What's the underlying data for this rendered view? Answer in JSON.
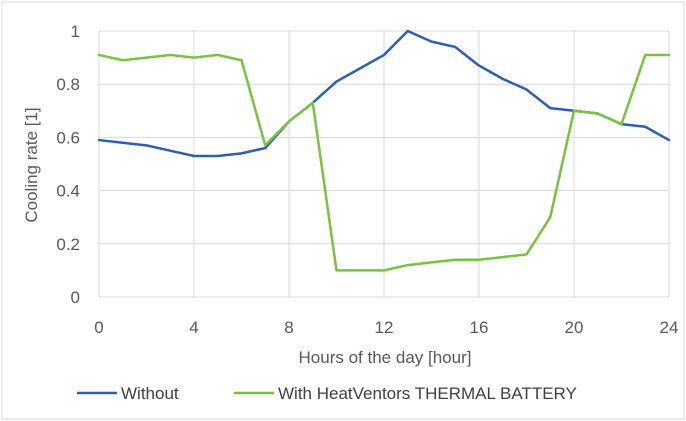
{
  "chart_data": {
    "type": "line",
    "title": "",
    "xlabel": "Hours of the day [hour]",
    "ylabel": "Cooling rate [1]",
    "xlim": [
      0,
      24
    ],
    "ylim": [
      0,
      1
    ],
    "xticks": [
      "0",
      "4",
      "8",
      "12",
      "16",
      "20",
      "24"
    ],
    "yticks": [
      "0",
      "0.2",
      "0.4",
      "0.6",
      "0.8",
      "1"
    ],
    "grid": true,
    "legend_position": "bottom",
    "series": [
      {
        "name": "Without",
        "color": "#2e5fae",
        "x": [
          0,
          1,
          2,
          3,
          4,
          5,
          6,
          7,
          8,
          9,
          10,
          11,
          12,
          13,
          14,
          15,
          16,
          17,
          18,
          19,
          20,
          21,
          22,
          23,
          24
        ],
        "values": [
          0.59,
          0.58,
          0.57,
          0.55,
          0.53,
          0.53,
          0.54,
          0.56,
          0.66,
          0.73,
          0.81,
          0.86,
          0.91,
          1.0,
          0.96,
          0.94,
          0.87,
          0.82,
          0.78,
          0.71,
          0.7,
          0.69,
          0.65,
          0.64,
          0.59
        ]
      },
      {
        "name": "With HeatVentors THERMAL BATTERY",
        "color": "#7ac142",
        "x": [
          0,
          1,
          2,
          3,
          4,
          5,
          6,
          7,
          8,
          9,
          10,
          11,
          12,
          13,
          14,
          15,
          16,
          17,
          18,
          19,
          20,
          21,
          22,
          23,
          24
        ],
        "values": [
          0.91,
          0.89,
          0.9,
          0.91,
          0.9,
          0.91,
          0.89,
          0.57,
          0.66,
          0.73,
          0.1,
          0.1,
          0.1,
          0.12,
          0.13,
          0.14,
          0.14,
          0.15,
          0.16,
          0.3,
          0.7,
          0.69,
          0.65,
          0.91,
          0.91
        ]
      }
    ]
  }
}
